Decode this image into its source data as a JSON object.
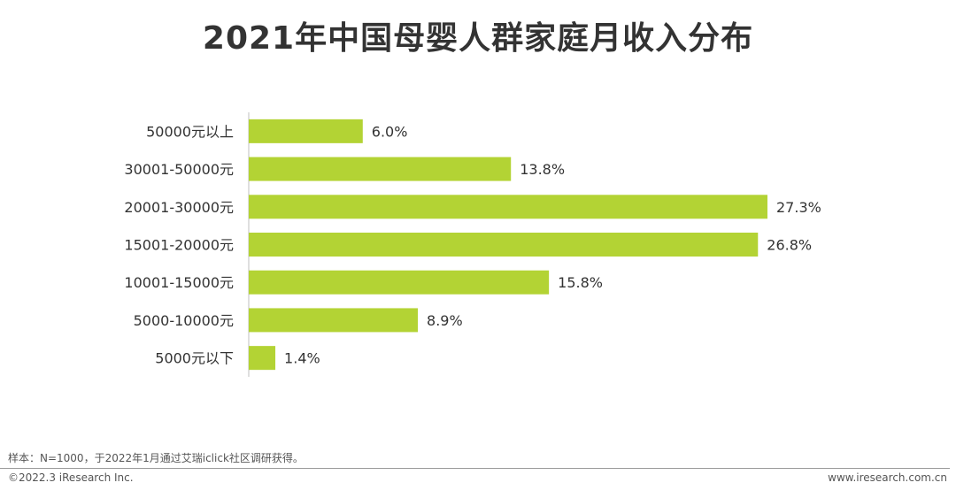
{
  "title": "2021年中国母婴人群家庭月收入分布",
  "chart_data": {
    "type": "bar",
    "orientation": "horizontal",
    "title": "2021年中国母婴人群家庭月收入分布",
    "categories": [
      "50000元以上",
      "30001-50000元",
      "20001-30000元",
      "15001-20000元",
      "10001-15000元",
      "5000-10000元",
      "5000元以下"
    ],
    "values": [
      6.0,
      13.8,
      27.3,
      26.8,
      15.8,
      8.9,
      1.4
    ],
    "value_labels": [
      "6.0%",
      "13.8%",
      "27.3%",
      "26.8%",
      "15.8%",
      "8.9%",
      "1.4%"
    ],
    "unit": "%",
    "xlim": [
      0,
      27.3
    ],
    "bar_color": "#b3d334",
    "grid": false,
    "legend": "none"
  },
  "footer": {
    "note": "样本：N=1000，于2022年1月通过艾瑞iclick社区调研获得。",
    "copyright": "©2022.3 iResearch Inc.",
    "website": "www.iresearch.com.cn"
  }
}
